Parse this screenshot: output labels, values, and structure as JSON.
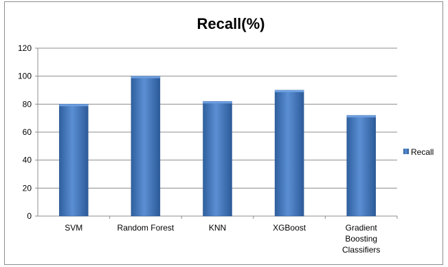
{
  "chart_data": {
    "type": "bar",
    "title": "Recall(%)",
    "categories": [
      "SVM",
      "Random Forest",
      "KNN",
      "XGBoost",
      "Gradient Boosting Classifiers"
    ],
    "series": [
      {
        "name": "Recall",
        "values": [
          80,
          100,
          82,
          90,
          72
        ]
      }
    ],
    "ylim": [
      0,
      120
    ],
    "yticks": [
      0,
      20,
      40,
      60,
      80,
      100,
      120
    ],
    "grid": true,
    "legend_position": "right",
    "bar_color": "#4a7ebb"
  }
}
